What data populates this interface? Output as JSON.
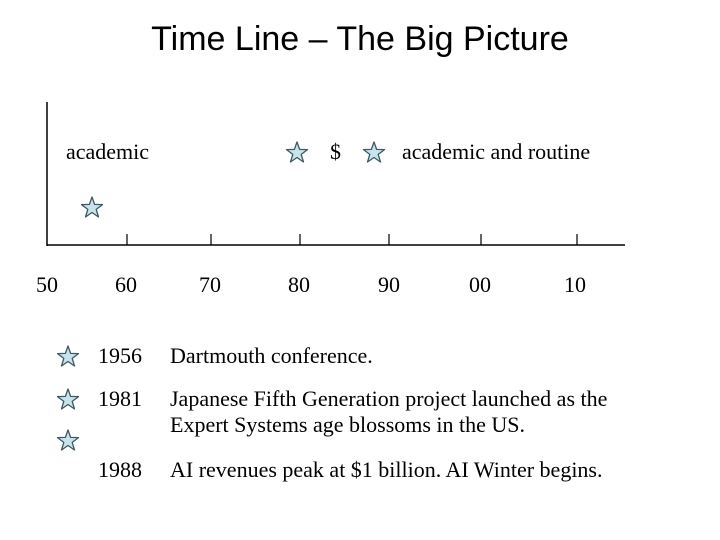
{
  "slide": {
    "title": "Time Line – The Big Picture"
  },
  "timeline": {
    "label_left": "academic",
    "label_money": "$",
    "label_right": "academic and routine",
    "ticks": [
      "50",
      "60",
      "70",
      "80",
      "90",
      "00",
      "10"
    ]
  },
  "events": [
    {
      "year": "1956",
      "text": "Dartmouth conference."
    },
    {
      "year": "1981",
      "text": "Japanese Fifth Generation project launched as the Expert Systems age blossoms in the US."
    },
    {
      "year": "1988",
      "text": "AI revenues peak at $1 billion.  AI Winter begins."
    }
  ],
  "colors": {
    "star_fill": "#c9e3ec",
    "star_stroke": "#3c5a66",
    "axis": "#000000"
  }
}
